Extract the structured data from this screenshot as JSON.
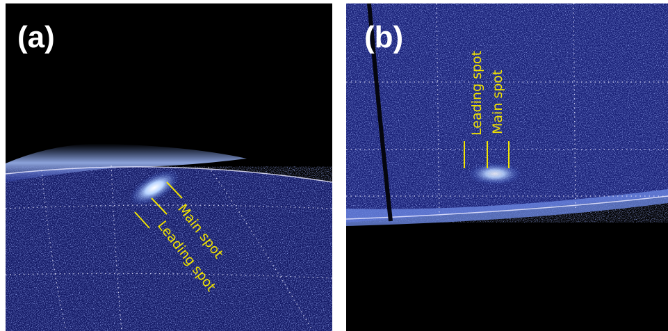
{
  "panels": [
    {
      "label": "(a)",
      "annotations": [
        "Main spot",
        "Leading spot"
      ]
    },
    {
      "label": "(b)",
      "annotations": [
        "Leading spot",
        "Main spot"
      ]
    }
  ]
}
